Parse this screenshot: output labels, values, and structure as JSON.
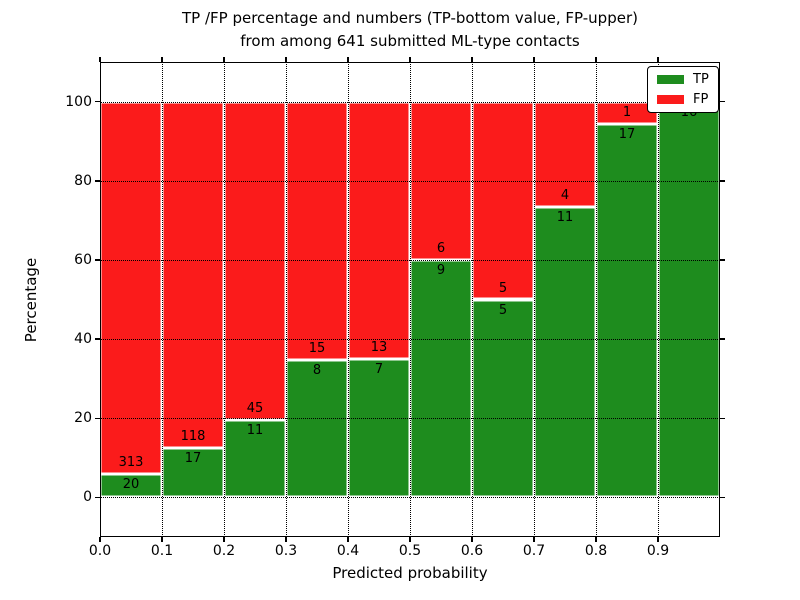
{
  "title": {
    "line1": "TP /FP percentage and numbers (TP-bottom value, FP-upper)",
    "line2": "from among 641 submitted ML-type contacts"
  },
  "axes": {
    "xlabel": "Predicted probability",
    "ylabel": "Percentage"
  },
  "legend": {
    "position": "upper right",
    "items": [
      {
        "label": "TP",
        "color": "#1e8c1e"
      },
      {
        "label": "FP",
        "color": "#fb1b1b"
      }
    ]
  },
  "chart_data": {
    "type": "bar",
    "stacked": true,
    "title": "TP /FP percentage and numbers (TP-bottom value, FP-upper)\nfrom among 641 submitted ML-type contacts",
    "xlabel": "Predicted probability",
    "ylabel": "Percentage",
    "total_contacts": 641,
    "bins": [
      "0.0-0.1",
      "0.1-0.2",
      "0.2-0.3",
      "0.3-0.4",
      "0.4-0.5",
      "0.5-0.6",
      "0.6-0.7",
      "0.7-0.8",
      "0.8-0.9",
      "0.9-1.0"
    ],
    "series": [
      {
        "name": "TP",
        "color": "#1e8c1e",
        "counts": [
          20,
          17,
          11,
          8,
          7,
          9,
          5,
          11,
          17,
          16
        ],
        "pct": [
          6.01,
          12.59,
          19.64,
          34.78,
          35.0,
          60.0,
          50.0,
          73.33,
          94.44,
          100.0
        ]
      },
      {
        "name": "FP",
        "color": "#fb1b1b",
        "counts": [
          313,
          118,
          45,
          15,
          13,
          6,
          5,
          4,
          1,
          0
        ],
        "pct": [
          93.99,
          87.41,
          80.36,
          65.22,
          65.0,
          40.0,
          50.0,
          26.67,
          5.56,
          0.0
        ]
      }
    ],
    "xlim": [
      0.0,
      1.0
    ],
    "ylim": [
      -10,
      110
    ],
    "xticks": [
      "0.0",
      "0.1",
      "0.2",
      "0.3",
      "0.4",
      "0.5",
      "0.6",
      "0.7",
      "0.8",
      "0.9"
    ],
    "yticks": [
      0,
      20,
      40,
      60,
      80,
      100
    ],
    "grid": "black dotted, drawn above bars; bars have white edges",
    "bar_label_note": "TP count below segment boundary, FP count above it"
  }
}
